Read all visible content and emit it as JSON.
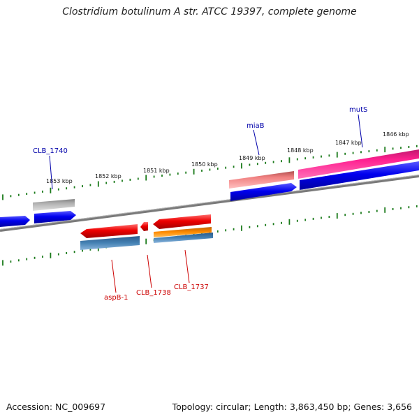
{
  "title": "Clostridium botulinum A str. ATCC 19397, complete genome",
  "ruler_labels": [
    "1853 kbp",
    "1852 kbp",
    "1851 kbp",
    "1850 kbp",
    "1849 kbp",
    "1848 kbp",
    "1847 kbp",
    "1846 kbp"
  ],
  "gene_labels_forward": [
    "CLB_1740",
    "miaB",
    "mutS"
  ],
  "gene_labels_reverse": [
    "aspB-1",
    "CLB_1738",
    "CLB_1737"
  ],
  "footer": {
    "accession": "Accession: NC_009697",
    "summary": "Topology: circular; Length: 3,863,450 bp; Genes: 3,656"
  },
  "colors": {
    "backbone": "#808080",
    "tick": "#1a7a1a",
    "forward_gene": "#0000ee",
    "reverse_gene": "#ee0000",
    "pink_track": "#ff2090",
    "salmon_track": "#f08080",
    "gray_track": "#b0b0b0",
    "steelblue_track": "#4682b4",
    "orange_track": "#ff8c00"
  }
}
